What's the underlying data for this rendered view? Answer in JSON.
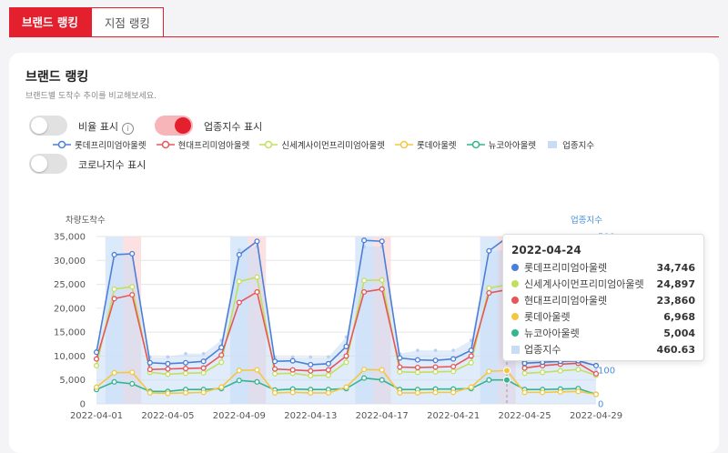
{
  "tabs": [
    {
      "label": "브랜드 랭킹"
    },
    {
      "label": "지점 랭킹"
    }
  ],
  "card": {
    "title": "브랜드 랭킹",
    "subtitle": "브랜드별 도착수 추이를 비교해보세요."
  },
  "toggles": [
    {
      "label": "비율 표시",
      "state": "off",
      "has_info": true
    },
    {
      "label": "업종지수 표시",
      "state": "on"
    },
    {
      "label": "코로나지수 표시",
      "state": "off"
    }
  ],
  "colors": {
    "accent": "#e4202f",
    "lotte_premium": "#4c7fd6",
    "hyundai_premium": "#e5575a",
    "shinsegae_premium": "#c2df5e",
    "lotte": "#f4c742",
    "new_core": "#34b58e",
    "industry": "#c9dcf5"
  },
  "chart_data": {
    "type": "line",
    "ylabel": "차량도착수",
    "y2label": "업종지수",
    "ylim": [
      0,
      35000
    ],
    "yticks": [
      "35,000",
      "30,000",
      "25,000",
      "20,000",
      "15,000",
      "10,000",
      "5,000",
      "0"
    ],
    "y2lim": [
      0,
      500
    ],
    "y2ticks": [
      "500",
      "100",
      "0"
    ],
    "x": [
      "2022-04-01",
      "2022-04-02",
      "2022-04-03",
      "2022-04-04",
      "2022-04-05",
      "2022-04-06",
      "2022-04-07",
      "2022-04-08",
      "2022-04-09",
      "2022-04-10",
      "2022-04-11",
      "2022-04-12",
      "2022-04-13",
      "2022-04-14",
      "2022-04-15",
      "2022-04-16",
      "2022-04-17",
      "2022-04-18",
      "2022-04-19",
      "2022-04-20",
      "2022-04-21",
      "2022-04-22",
      "2022-04-23",
      "2022-04-24",
      "2022-04-25",
      "2022-04-26",
      "2022-04-27",
      "2022-04-28",
      "2022-04-29"
    ],
    "xticks": [
      "2022-04-01",
      "2022-04-05",
      "2022-04-09",
      "2022-04-13",
      "2022-04-17",
      "2022-04-21",
      "2022-04-25",
      "2022-04-29"
    ],
    "weekend_days": [
      "2022-04-02",
      "2022-04-03",
      "2022-04-09",
      "2022-04-10",
      "2022-04-16",
      "2022-04-17",
      "2022-04-23",
      "2022-04-24"
    ],
    "series": [
      {
        "name": "롯데프리미엄아울렛",
        "color": "#4c7fd6",
        "values": [
          10800,
          31200,
          31400,
          8600,
          8400,
          8600,
          8900,
          11800,
          31200,
          34000,
          8900,
          9000,
          8200,
          8400,
          12000,
          34200,
          34000,
          9600,
          9200,
          9100,
          9400,
          11200,
          32000,
          34746,
          8500,
          8700,
          8900,
          9000,
          8000
        ]
      },
      {
        "name": "현대프리미엄아울렛",
        "color": "#e5575a",
        "values": [
          9400,
          22000,
          22800,
          7200,
          7300,
          7400,
          7500,
          10200,
          21200,
          23400,
          7300,
          7100,
          6900,
          7100,
          10000,
          23400,
          24000,
          7700,
          7600,
          7700,
          7800,
          10000,
          23200,
          23860,
          7500,
          8000,
          8300,
          8500,
          6300
        ]
      },
      {
        "name": "신세계사이먼프리미엄아울렛",
        "color": "#c2df5e",
        "values": [
          8000,
          24000,
          24500,
          6600,
          6200,
          6400,
          6500,
          8700,
          25600,
          26500,
          6300,
          6400,
          5900,
          6000,
          8700,
          25800,
          25900,
          6700,
          6600,
          6700,
          6800,
          8600,
          24200,
          24897,
          6400,
          6600,
          6900,
          7200,
          6000
        ]
      },
      {
        "name": "롯데아울렛",
        "color": "#f4c742",
        "values": [
          3500,
          6500,
          6600,
          2300,
          2200,
          2300,
          2400,
          3500,
          7000,
          7100,
          2300,
          2400,
          2300,
          2300,
          3500,
          7200,
          7100,
          2300,
          2300,
          2400,
          2400,
          3500,
          6800,
          6968,
          2400,
          2400,
          2500,
          2600,
          2000
        ]
      },
      {
        "name": "뉴코아아울렛",
        "color": "#34b58e",
        "values": [
          3000,
          4600,
          4200,
          2600,
          2600,
          3000,
          3000,
          3200,
          4900,
          4600,
          2900,
          3100,
          3000,
          3000,
          3200,
          5400,
          5000,
          3000,
          3000,
          3100,
          3100,
          3200,
          5000,
          5004,
          3000,
          3000,
          3100,
          3200,
          2000
        ]
      }
    ],
    "industry_index": {
      "name": "업종지수",
      "color": "#c9dcf5",
      "values": [
        160,
        450,
        450,
        140,
        140,
        150,
        150,
        190,
        460,
        470,
        140,
        140,
        140,
        140,
        200,
        470,
        470,
        150,
        160,
        160,
        160,
        190,
        455,
        460.63,
        140,
        140,
        150,
        150,
        100
      ]
    },
    "legend_position": "top",
    "grid": true,
    "highlight_date": "2022-04-24"
  },
  "tooltip": {
    "date": "2022-04-24",
    "rows": [
      {
        "name": "롯데프리미엄아울렛",
        "value": "34,746",
        "color": "#4c7fd6"
      },
      {
        "name": "신세계사이먼프리미엄아울렛",
        "value": "24,897",
        "color": "#c2df5e"
      },
      {
        "name": "현대프리미엄아울렛",
        "value": "23,860",
        "color": "#e5575a"
      },
      {
        "name": "롯데아울렛",
        "value": "6,968",
        "color": "#f4c742"
      },
      {
        "name": "뉴코아아울렛",
        "value": "5,004",
        "color": "#34b58e"
      },
      {
        "name": "업종지수",
        "value": "460.63",
        "color": "#c9dcf5"
      }
    ]
  }
}
